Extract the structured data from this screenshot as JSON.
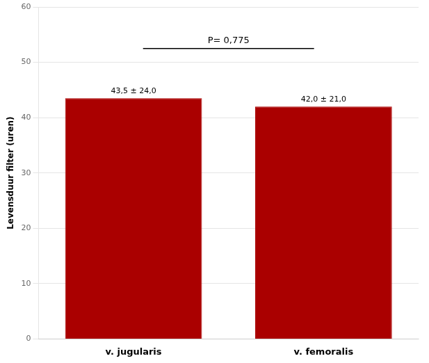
{
  "chart_data": {
    "type": "bar",
    "categories": [
      "v. jugularis",
      "v. femoralis"
    ],
    "values": [
      43.5,
      42.0
    ],
    "value_labels": [
      "43,5 ± 24,0",
      "42,0 ± 21,0"
    ],
    "data_labels": true,
    "color": "#aa0000",
    "ylabel": "Levensduur filter (uren)",
    "ylim": [
      0,
      60
    ],
    "yticks": [
      0,
      10,
      20,
      30,
      40,
      50,
      60
    ],
    "grid": true,
    "annotations": [
      {
        "text": "P= 0,775",
        "y": 52.5
      }
    ]
  }
}
